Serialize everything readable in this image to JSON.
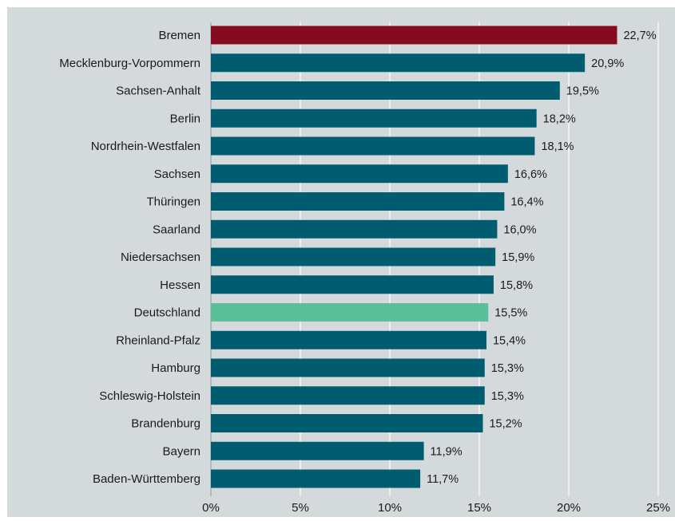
{
  "chart_data": {
    "type": "bar",
    "orientation": "horizontal",
    "categories": [
      "Bremen",
      "Mecklenburg-Vorpommern",
      "Sachsen-Anhalt",
      "Berlin",
      "Nordrhein-Westfalen",
      "Sachsen",
      "Thüringen",
      "Saarland",
      "Niedersachsen",
      "Hessen",
      "Deutschland",
      "Rheinland-Pfalz",
      "Hamburg",
      "Schleswig-Holstein",
      "Brandenburg",
      "Bayern",
      "Baden-Württemberg"
    ],
    "values": [
      22.7,
      20.9,
      19.5,
      18.2,
      18.1,
      16.6,
      16.4,
      16.0,
      15.9,
      15.8,
      15.5,
      15.4,
      15.3,
      15.3,
      15.2,
      11.9,
      11.7
    ],
    "value_labels": [
      "22,7%",
      "20,9%",
      "19,5%",
      "18,2%",
      "18,1%",
      "16,6%",
      "16,4%",
      "16,0%",
      "15,9%",
      "15,8%",
      "15,5%",
      "15,4%",
      "15,3%",
      "15,3%",
      "15,2%",
      "11,9%",
      "11,7%"
    ],
    "xlim": [
      0,
      25
    ],
    "x_ticks": [
      0,
      5,
      10,
      15,
      20,
      25
    ],
    "x_tick_labels": [
      "0%",
      "5%",
      "10%",
      "15%",
      "20%",
      "25%"
    ],
    "grid": "vertical",
    "title": "",
    "xlabel": "",
    "ylabel": "",
    "colors": {
      "default": "#005c6e",
      "highlight_top": "#850c1e",
      "highlight_national": "#5bbf9c",
      "background": "#d4dadb",
      "gridline": "#ffffff",
      "text": "#1a1a1a"
    },
    "highlight": {
      "Bremen": "highlight_top",
      "Deutschland": "highlight_national"
    }
  }
}
